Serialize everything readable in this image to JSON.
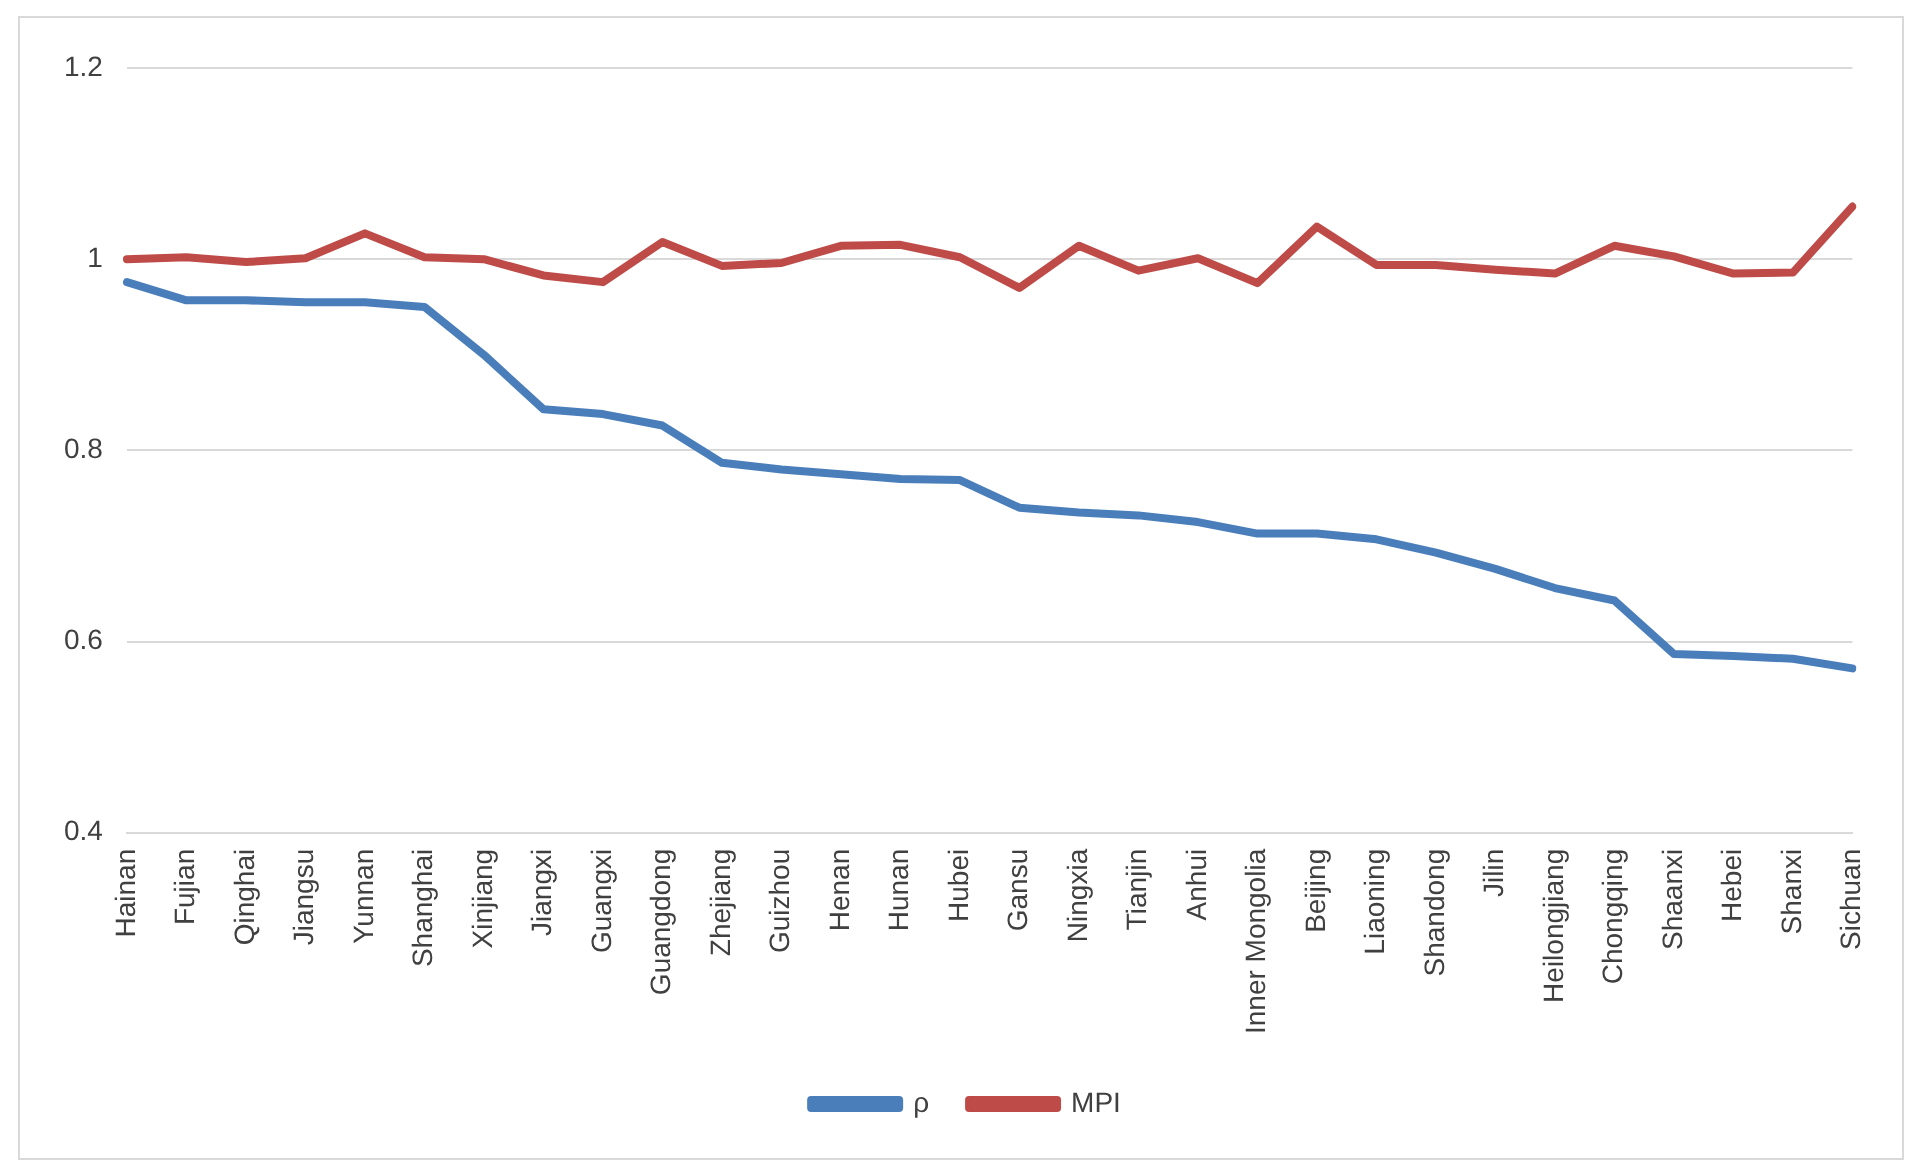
{
  "chart_data": {
    "type": "line",
    "categories": [
      "Hainan",
      "Fujian",
      "Qinghai",
      "Jiangsu",
      "Yunnan",
      "Shanghai",
      "Xinjiang",
      "Jiangxi",
      "Guangxi",
      "Guangdong",
      "Zhejiang",
      "Guizhou",
      "Henan",
      "Hunan",
      "Hubei",
      "Gansu",
      "Ningxia",
      "Tianjin",
      "Anhui",
      "Inner Mongolia",
      "Beijing",
      "Liaoning",
      "Shandong",
      "Jilin",
      "Heilongjiang",
      "Chongqing",
      "Shaanxi",
      "Hebei",
      "Shanxi",
      "Sichuan"
    ],
    "series": [
      {
        "name": "ρ",
        "color": "#4a7ebb",
        "values": [
          0.976,
          0.957,
          0.957,
          0.955,
          0.955,
          0.95,
          0.9,
          0.843,
          0.838,
          0.826,
          0.787,
          0.78,
          0.775,
          0.77,
          0.769,
          0.74,
          0.735,
          0.732,
          0.725,
          0.713,
          0.713,
          0.707,
          0.693,
          0.676,
          0.656,
          0.643,
          0.587,
          0.585,
          0.582,
          0.572
        ]
      },
      {
        "name": "MPI",
        "color": "#be4b48",
        "values": [
          1.0,
          1.002,
          0.997,
          1.001,
          1.027,
          1.002,
          1.0,
          0.983,
          0.976,
          1.018,
          0.993,
          0.996,
          1.014,
          1.015,
          1.002,
          0.97,
          1.014,
          0.988,
          1.001,
          0.975,
          1.034,
          0.994,
          0.994,
          0.989,
          0.985,
          1.014,
          1.003,
          0.985,
          0.986,
          1.055
        ]
      }
    ],
    "ylim": [
      0.4,
      1.2
    ],
    "yticks": [
      0.4,
      0.6,
      0.8,
      1,
      1.2
    ],
    "grid": "y",
    "legend": "bottom",
    "marker": "none",
    "line_style": "solid"
  }
}
